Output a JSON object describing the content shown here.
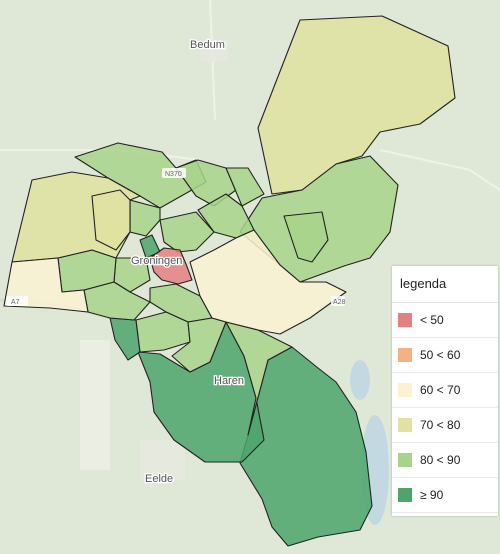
{
  "places": {
    "bedum": "Bedum",
    "groningen": "Groningen",
    "haren": "Haren",
    "eelde": "Eelde"
  },
  "roads": {
    "n370": "N370",
    "a7": "A7",
    "a28": "A28"
  },
  "colors": {
    "lt50": "#e57f84",
    "c50_60": "#f4b183",
    "c60_70": "#fbf2d2",
    "c70_80": "#dfe2a0",
    "c80_90": "#a8d489",
    "ge90": "#4ea46c",
    "background": "#dfe8d6"
  },
  "legend": {
    "title": "legenda",
    "items": [
      {
        "label": "< 50",
        "color": "#e57f84"
      },
      {
        "label": "50 < 60",
        "color": "#f4b183"
      },
      {
        "label": "60 < 70",
        "color": "#fbf2d2"
      },
      {
        "label": "70 < 80",
        "color": "#dfe2a0"
      },
      {
        "label": "80 < 90",
        "color": "#a8d489"
      },
      {
        "label": "≥ 90",
        "color": "#4ea46c"
      }
    ]
  }
}
